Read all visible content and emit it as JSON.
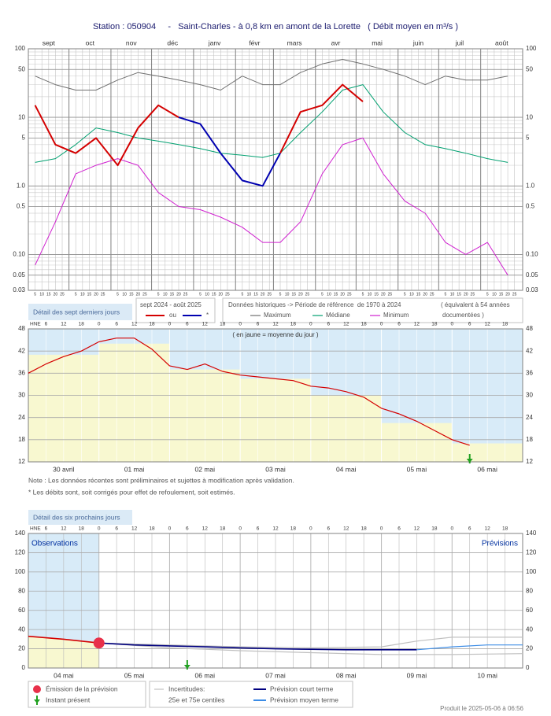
{
  "title": "Station : 050904     -   Saint-Charles - à 0,8 km en amont de la Lorette   ( Débit moyen en m³/s )",
  "tabs": [
    "Détail des sept derniers jours",
    "Détail des six prochains jours"
  ],
  "history_legend": {
    "title": "Données historiques -> Période de référence  de 1970 à 2024",
    "extra": "( équivalent à 54 années",
    "extra2": "documentées )"
  },
  "notes": [
    "Note : Les données récentes sont préliminaires et sujettes à modification après validation.",
    "* Les débits sont, soit corrigés pour effet de refoulement, soit estimés."
  ],
  "forecast_legend": {
    "emission": "Émission de la prévision",
    "present": "Instant présent",
    "uncertainty_title": "Incertitudes:",
    "uncertainty": "25e et 75e centiles",
    "short": "Prévision court terme",
    "medium": "Prévision moyen terme"
  },
  "footer": "Produit le 2025-05-06 à 06:56",
  "chart_data": [
    {
      "type": "line",
      "log_scale": true,
      "legend_title": "sept 2024 - août 2025",
      "months": [
        "sept",
        "oct",
        "nov",
        "déc",
        "janv",
        "févr",
        "mars",
        "avr",
        "mai",
        "juin",
        "juil",
        "août"
      ],
      "day_ticks": [
        5,
        10,
        15,
        20,
        25
      ],
      "x": [
        "5 sept",
        "20 sept",
        "5 oct",
        "20 oct",
        "5 nov",
        "20 nov",
        "5 déc",
        "20 déc",
        "5 janv",
        "20 janv",
        "5 févr",
        "20 févr",
        "5 mars",
        "20 mars",
        "5 avr",
        "20 avr",
        "5 mai",
        "20 mai",
        "5 juin",
        "20 juin",
        "5 juil",
        "20 juil",
        "5 août",
        "20 août"
      ],
      "ylim": [
        0.03,
        100
      ],
      "yticks": [
        0.03,
        0.05,
        {
          "value": 0.1,
          "label": "0.10"
        },
        0.5,
        {
          "value": 1,
          "label": "1.0"
        },
        5,
        10,
        50,
        100
      ],
      "series": [
        {
          "name": "ou",
          "color": "#d40000",
          "values": [
            15,
            4,
            3,
            5,
            2,
            7,
            15,
            10,
            null,
            null,
            null,
            null,
            3,
            12,
            15,
            30,
            17,
            null,
            null,
            null,
            null,
            null,
            null,
            null
          ]
        },
        {
          "name": "*",
          "color": "#0000b0",
          "values": [
            null,
            null,
            null,
            null,
            null,
            null,
            null,
            10,
            8,
            3,
            1.2,
            1.0,
            3,
            null,
            null,
            null,
            null,
            null,
            null,
            null,
            null,
            null,
            null,
            null
          ]
        },
        {
          "name": "Maximum",
          "color": "#707070",
          "values": [
            40,
            30,
            25,
            25,
            35,
            45,
            40,
            35,
            30,
            25,
            40,
            30,
            30,
            45,
            60,
            70,
            60,
            50,
            40,
            30,
            40,
            35,
            35,
            40
          ]
        },
        {
          "name": "Médiane",
          "color": "#00a070",
          "values": [
            2.2,
            2.5,
            4,
            7,
            6,
            5,
            4.5,
            4,
            3.5,
            3,
            2.8,
            2.6,
            3,
            6,
            12,
            25,
            30,
            12,
            6,
            4,
            3.5,
            3,
            2.5,
            2.2
          ]
        },
        {
          "name": "Minimum",
          "color": "#d020d0",
          "values": [
            0.07,
            0.3,
            1.5,
            2,
            2.5,
            2,
            0.8,
            0.5,
            0.45,
            0.35,
            0.25,
            0.15,
            0.15,
            0.3,
            1.5,
            4,
            5,
            1.5,
            0.6,
            0.4,
            0.15,
            0.1,
            0.15,
            0.05
          ]
        }
      ]
    },
    {
      "type": "line",
      "annotation": "( en jaune = moyenne du jour )",
      "hour_label": "HNE",
      "hour_ticks": [
        0,
        6,
        12,
        18
      ],
      "categories": [
        "30 avril",
        "01 mai",
        "02 mai",
        "03 mai",
        "04 mai",
        "05 mai",
        "06 mai"
      ],
      "ylim": [
        12,
        48
      ],
      "yticks": [
        12,
        18,
        24,
        30,
        36,
        42,
        48
      ],
      "daily_means": [
        41,
        44,
        37,
        34.5,
        30,
        22.5,
        17
      ],
      "daily_mean_color": "#f8f8d0",
      "present_x": 150,
      "x": [
        0,
        6,
        12,
        18,
        24,
        30,
        36,
        42,
        48,
        54,
        60,
        66,
        72,
        78,
        84,
        90,
        96,
        102,
        108,
        114,
        120,
        126,
        132,
        138,
        144,
        150
      ],
      "series": [
        {
          "color": "#d40000",
          "values": [
            36,
            38.5,
            40.5,
            42,
            44.5,
            45.5,
            45.5,
            42.5,
            38,
            37,
            38.5,
            36.5,
            35.5,
            35,
            34.5,
            34,
            32.5,
            32,
            31,
            29.5,
            26.5,
            25,
            23,
            20.5,
            18,
            16.5
          ]
        }
      ]
    },
    {
      "type": "line",
      "hour_label": "HNE",
      "hour_ticks": [
        0,
        6,
        12,
        18
      ],
      "observations_label": "Observations",
      "forecast_label": "Prévisions",
      "categories": [
        "04 mai",
        "05 mai",
        "06 mai",
        "07 mai",
        "08 mai",
        "09 mai",
        "10 mai"
      ],
      "ylim": [
        0,
        140
      ],
      "yticks": [
        0,
        20,
        40,
        60,
        80,
        100,
        120,
        140
      ],
      "present_x": 54,
      "series": [
        {
          "color": "#d40000",
          "x": [
            0,
            12,
            24
          ],
          "values": [
            33,
            30,
            26
          ]
        },
        {
          "color": "#000080",
          "x": [
            24,
            36,
            48,
            60,
            72,
            84,
            96,
            108,
            120,
            132
          ],
          "values": [
            26,
            24,
            23,
            22,
            21,
            20,
            19.5,
            19,
            19,
            19
          ]
        },
        {
          "color": "#3c8ce6",
          "x": [
            132,
            144,
            156,
            168
          ],
          "values": [
            19,
            22,
            24,
            24
          ]
        },
        {
          "color": "#c0c0c0",
          "x": [
            24,
            48,
            72,
            96,
            120,
            132,
            144,
            168
          ],
          "values": [
            26,
            24,
            22,
            21,
            22,
            28,
            32,
            32
          ]
        },
        {
          "color": "#c0c0c0",
          "x": [
            24,
            48,
            72,
            96,
            120,
            144,
            168
          ],
          "values": [
            26,
            21,
            18,
            16,
            14,
            14,
            15
          ]
        }
      ]
    }
  ]
}
